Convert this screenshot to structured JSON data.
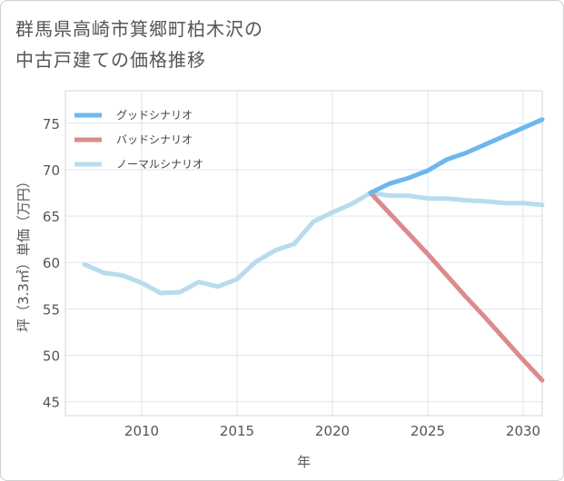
{
  "header": {
    "title_line1": "群馬県高崎市箕郷町柏木沢の",
    "title_line2": "中古戸建ての価格推移"
  },
  "chart_data": {
    "type": "line",
    "title": "群馬県高崎市箕郷町柏木沢の中古戸建ての価格推移",
    "xlabel": "年",
    "ylabel": "坪（3.3㎡）単価（万円）",
    "xlim": [
      2006,
      2031
    ],
    "ylim": [
      43.5,
      78.5
    ],
    "xticks": [
      2010,
      2015,
      2020,
      2025,
      2030
    ],
    "yticks": [
      45,
      50,
      55,
      60,
      65,
      70,
      75
    ],
    "grid": true,
    "legend_position": "top-left",
    "series": [
      {
        "name": "グッドシナリオ",
        "color": "#6cb8ee",
        "x": [
          2022,
          2023,
          2024,
          2025,
          2026,
          2027,
          2028,
          2029,
          2030,
          2031
        ],
        "y": [
          67.5,
          68.5,
          69.1,
          69.9,
          71.1,
          71.8,
          72.7,
          73.6,
          74.5,
          75.4
        ]
      },
      {
        "name": "バッドシナリオ",
        "color": "#dc8a8e",
        "x": [
          2022,
          2023,
          2024,
          2025,
          2026,
          2027,
          2028,
          2029,
          2030,
          2031
        ],
        "y": [
          67.5,
          65.3,
          63.1,
          60.9,
          58.6,
          56.3,
          54.1,
          51.8,
          49.5,
          47.3
        ]
      },
      {
        "name": "ノーマルシナリオ",
        "color": "#b8dcec",
        "x": [
          2007,
          2008,
          2009,
          2010,
          2011,
          2012,
          2013,
          2014,
          2015,
          2016,
          2017,
          2018,
          2019,
          2020,
          2021,
          2022,
          2023,
          2024,
          2025,
          2026,
          2027,
          2028,
          2029,
          2030,
          2031
        ],
        "y": [
          59.8,
          58.9,
          58.6,
          57.8,
          56.7,
          56.8,
          57.9,
          57.4,
          58.2,
          60.1,
          61.3,
          62.0,
          64.4,
          65.4,
          66.3,
          67.5,
          67.2,
          67.2,
          66.9,
          66.9,
          66.7,
          66.6,
          66.4,
          66.4,
          66.2
        ]
      }
    ]
  }
}
